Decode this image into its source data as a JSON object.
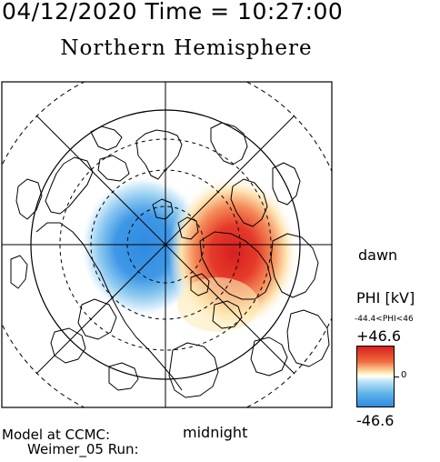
{
  "header": {
    "datetime": "04/12/2020 Time = 10:27:00",
    "hemisphere": "Northern Hemisphere"
  },
  "map": {
    "projection": "polar",
    "directions": {
      "dawn": "dawn",
      "midnight": "midnight"
    },
    "potential_cells": [
      {
        "sign": "negative",
        "color": "#2f8ae0",
        "side": "dusk"
      },
      {
        "sign": "positive",
        "color": "#d62020",
        "side": "dawn"
      }
    ]
  },
  "legend": {
    "title": "PHI [kV]",
    "range": "-44.4<PHI<46",
    "max": "+46.6",
    "zero": "0",
    "min": "-46.6",
    "colors": {
      "max": "#d62020",
      "mid": "#ffffff",
      "min": "#2f8ae0"
    }
  },
  "footer": {
    "model": "Model at CCMC:",
    "run": "Weimer_05 Run:"
  }
}
